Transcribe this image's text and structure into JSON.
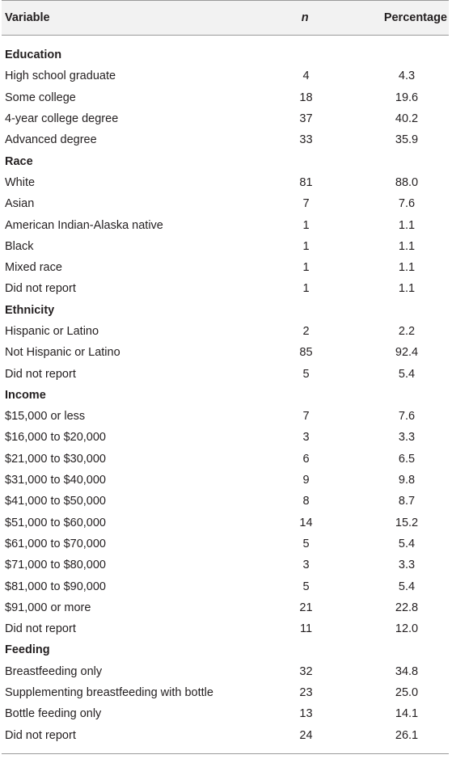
{
  "table": {
    "headers": {
      "variable": "Variable",
      "n": "n",
      "percentage": "Percentage"
    },
    "sections": [
      {
        "title": "Education",
        "rows": [
          {
            "label": "High school graduate",
            "n": "4",
            "pct": "4.3"
          },
          {
            "label": "Some college",
            "n": "18",
            "pct": "19.6"
          },
          {
            "label": "4-year college degree",
            "n": "37",
            "pct": "40.2"
          },
          {
            "label": "Advanced degree",
            "n": "33",
            "pct": "35.9"
          }
        ]
      },
      {
        "title": "Race",
        "rows": [
          {
            "label": "White",
            "n": "81",
            "pct": "88.0"
          },
          {
            "label": "Asian",
            "n": "7",
            "pct": "7.6"
          },
          {
            "label": "American Indian-Alaska native",
            "n": "1",
            "pct": "1.1"
          },
          {
            "label": "Black",
            "n": "1",
            "pct": "1.1"
          },
          {
            "label": "Mixed race",
            "n": "1",
            "pct": "1.1"
          },
          {
            "label": "Did not report",
            "n": "1",
            "pct": "1.1"
          }
        ]
      },
      {
        "title": "Ethnicity",
        "rows": [
          {
            "label": "Hispanic or Latino",
            "n": "2",
            "pct": "2.2"
          },
          {
            "label": "Not Hispanic or Latino",
            "n": "85",
            "pct": "92.4"
          },
          {
            "label": "Did not report",
            "n": "5",
            "pct": "5.4"
          }
        ]
      },
      {
        "title": "Income",
        "rows": [
          {
            "label": "$15,000 or less",
            "n": "7",
            "pct": "7.6"
          },
          {
            "label": "$16,000 to $20,000",
            "n": "3",
            "pct": "3.3"
          },
          {
            "label": "$21,000 to $30,000",
            "n": "6",
            "pct": "6.5"
          },
          {
            "label": "$31,000 to $40,000",
            "n": "9",
            "pct": "9.8"
          },
          {
            "label": "$41,000 to $50,000",
            "n": "8",
            "pct": "8.7"
          },
          {
            "label": "$51,000 to $60,000",
            "n": "14",
            "pct": "15.2"
          },
          {
            "label": "$61,000 to $70,000",
            "n": "5",
            "pct": "5.4"
          },
          {
            "label": "$71,000 to $80,000",
            "n": "3",
            "pct": "3.3"
          },
          {
            "label": "$81,000 to $90,000",
            "n": "5",
            "pct": "5.4"
          },
          {
            "label": "$91,000 or more",
            "n": "21",
            "pct": "22.8"
          },
          {
            "label": "Did not report",
            "n": "11",
            "pct": "12.0"
          }
        ]
      },
      {
        "title": "Feeding",
        "rows": [
          {
            "label": "Breastfeeding only",
            "n": "32",
            "pct": "34.8"
          },
          {
            "label": "Supplementing breastfeeding with bottle",
            "n": "23",
            "pct": "25.0"
          },
          {
            "label": "Bottle feeding only",
            "n": "13",
            "pct": "14.1"
          },
          {
            "label": "Did not report",
            "n": "24",
            "pct": "26.1"
          }
        ]
      }
    ]
  }
}
